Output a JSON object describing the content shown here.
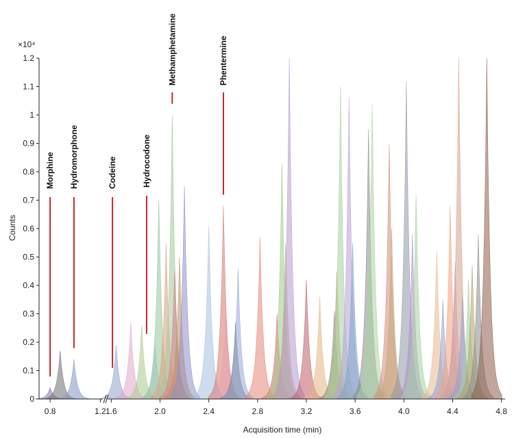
{
  "chart_data": {
    "type": "line",
    "title": "",
    "xlabel": "Acquisition time (min)",
    "ylabel": "Counts",
    "multiplier": "×10⁴",
    "ylim": [
      0,
      1.2
    ],
    "y_ticks": [
      "0",
      "0.1",
      "0.2",
      "0.3",
      "0.4",
      "0.5",
      "0.6",
      "0.7",
      "0.8",
      "0.9",
      "1",
      "1.1",
      "1.2"
    ],
    "segments": [
      {
        "range": [
          0.75,
          1.22
        ],
        "ticks": [
          0.8,
          1.2
        ],
        "tick_labels": [
          "0.8",
          "1.2"
        ]
      },
      {
        "range": [
          1.57,
          4.83
        ],
        "ticks": [
          1.6,
          2.0,
          2.4,
          2.8,
          3.2,
          3.6,
          4.0,
          4.4,
          4.8
        ],
        "tick_labels": [
          "1.6",
          "2.0",
          "2.4",
          "2.8",
          "3.2",
          "3.6",
          "4.0",
          "4.4",
          "4.8"
        ]
      }
    ],
    "annotations": [
      {
        "label": "Morphine",
        "x": 0.8,
        "peak": 0.06
      },
      {
        "label": "Hydromorphone",
        "x": 0.99,
        "peak": 0.16
      },
      {
        "label": "Codeine",
        "x": 1.61,
        "peak": 0.09
      },
      {
        "label": "Hydrocodone",
        "x": 1.89,
        "peak": 0.21
      },
      {
        "label": "Methamphetamine",
        "x": 2.1,
        "peak": 1.02
      },
      {
        "label": "Phentermine",
        "x": 2.52,
        "peak": 0.7
      }
    ],
    "peaks": [
      {
        "x": 0.8,
        "h": 0.04,
        "c": "#8a6fb0"
      },
      {
        "x": 0.88,
        "h": 0.17,
        "c": "#6e6e6e"
      },
      {
        "x": 0.99,
        "h": 0.14,
        "c": "#7f95c5"
      },
      {
        "x": 1.64,
        "h": 0.19,
        "c": "#8fa3cf"
      },
      {
        "x": 1.76,
        "h": 0.27,
        "c": "#e2a6c8"
      },
      {
        "x": 1.85,
        "h": 0.26,
        "c": "#a9c98e"
      },
      {
        "x": 1.96,
        "h": 0.19,
        "c": "#b9b9e0"
      },
      {
        "x": 1.99,
        "h": 0.7,
        "c": "#8fc89a"
      },
      {
        "x": 2.05,
        "h": 0.55,
        "c": "#e39b7d"
      },
      {
        "x": 2.1,
        "h": 1.0,
        "c": "#a0c89a"
      },
      {
        "x": 2.12,
        "h": 0.45,
        "c": "#d97b8c"
      },
      {
        "x": 2.16,
        "h": 0.5,
        "c": "#c08f5c"
      },
      {
        "x": 2.2,
        "h": 0.75,
        "c": "#8d8fc7"
      },
      {
        "x": 2.4,
        "h": 0.61,
        "c": "#a8bfe0"
      },
      {
        "x": 2.52,
        "h": 0.68,
        "c": "#d47970"
      },
      {
        "x": 2.54,
        "h": 0.3,
        "c": "#e7a0b2"
      },
      {
        "x": 2.62,
        "h": 0.27,
        "c": "#6f6f6f"
      },
      {
        "x": 2.64,
        "h": 0.46,
        "c": "#93a9d8"
      },
      {
        "x": 2.82,
        "h": 0.57,
        "c": "#e2867a"
      },
      {
        "x": 2.96,
        "h": 0.3,
        "c": "#d76e6e"
      },
      {
        "x": 3.0,
        "h": 0.83,
        "c": "#9cc98c"
      },
      {
        "x": 3.03,
        "h": 0.55,
        "c": "#c2a67b"
      },
      {
        "x": 3.06,
        "h": 1.2,
        "c": "#b49bd0"
      },
      {
        "x": 3.2,
        "h": 0.42,
        "c": "#c05c6a"
      },
      {
        "x": 3.31,
        "h": 0.36,
        "c": "#e3b57f"
      },
      {
        "x": 3.43,
        "h": 0.31,
        "c": "#8a8a8a"
      },
      {
        "x": 3.45,
        "h": 0.45,
        "c": "#b6a36a"
      },
      {
        "x": 3.48,
        "h": 1.1,
        "c": "#a5d0a0"
      },
      {
        "x": 3.55,
        "h": 1.06,
        "c": "#b7a0d6"
      },
      {
        "x": 3.58,
        "h": 0.55,
        "c": "#7aa5c8"
      },
      {
        "x": 3.71,
        "h": 0.95,
        "c": "#8a8a8a"
      },
      {
        "x": 3.74,
        "h": 1.04,
        "c": "#a8d4a0"
      },
      {
        "x": 3.88,
        "h": 0.9,
        "c": "#d28a7a"
      },
      {
        "x": 3.9,
        "h": 0.6,
        "c": "#c2a87a"
      },
      {
        "x": 4.02,
        "h": 1.12,
        "c": "#8e97a6"
      },
      {
        "x": 4.07,
        "h": 0.58,
        "c": "#b08ad0"
      },
      {
        "x": 4.1,
        "h": 0.72,
        "c": "#a4d09e"
      },
      {
        "x": 4.27,
        "h": 0.52,
        "c": "#e8b892"
      },
      {
        "x": 4.32,
        "h": 0.35,
        "c": "#8fa3cf"
      },
      {
        "x": 4.38,
        "h": 0.68,
        "c": "#f0a07a"
      },
      {
        "x": 4.42,
        "h": 0.48,
        "c": "#c2a0d8"
      },
      {
        "x": 4.45,
        "h": 1.2,
        "c": "#d6a08a"
      },
      {
        "x": 4.48,
        "h": 0.36,
        "c": "#8fa0d0"
      },
      {
        "x": 4.53,
        "h": 0.42,
        "c": "#9cd0a4"
      },
      {
        "x": 4.56,
        "h": 0.47,
        "c": "#b3a06a"
      },
      {
        "x": 4.61,
        "h": 0.58,
        "c": "#8a8a8a"
      },
      {
        "x": 4.68,
        "h": 1.2,
        "c": "#8c5c4a"
      }
    ]
  }
}
